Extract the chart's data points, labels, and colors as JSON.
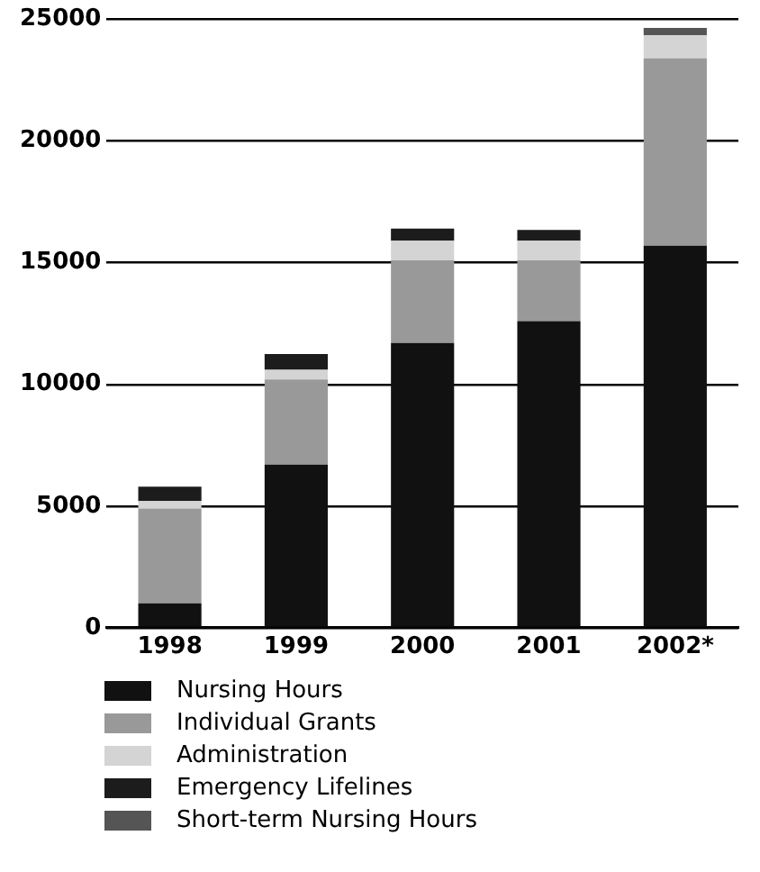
{
  "chart_data": {
    "type": "bar",
    "stacked": true,
    "categories": [
      "1998",
      "1999",
      "2000",
      "2001",
      "2002*"
    ],
    "series": [
      {
        "name": "Nursing Hours",
        "color": "#111111",
        "values": [
          1000,
          6700,
          11700,
          12600,
          15700
        ]
      },
      {
        "name": "Individual Grants",
        "color": "#999999",
        "values": [
          3900,
          3500,
          3400,
          2500,
          7700
        ]
      },
      {
        "name": "Administration",
        "color": "#d4d4d4",
        "values": [
          300,
          400,
          800,
          800,
          950
        ]
      },
      {
        "name": "Emergency Lifelines",
        "color": "#1c1c1c",
        "values": [
          600,
          650,
          500,
          450,
          0
        ]
      },
      {
        "name": "Short-term Nursing Hours",
        "color": "#555555",
        "values": [
          0,
          0,
          0,
          0,
          300
        ]
      }
    ],
    "ylim": [
      0,
      25000
    ],
    "yticks": [
      0,
      5000,
      10000,
      15000,
      20000,
      25000
    ],
    "grid": "y",
    "legend": "bottom"
  }
}
